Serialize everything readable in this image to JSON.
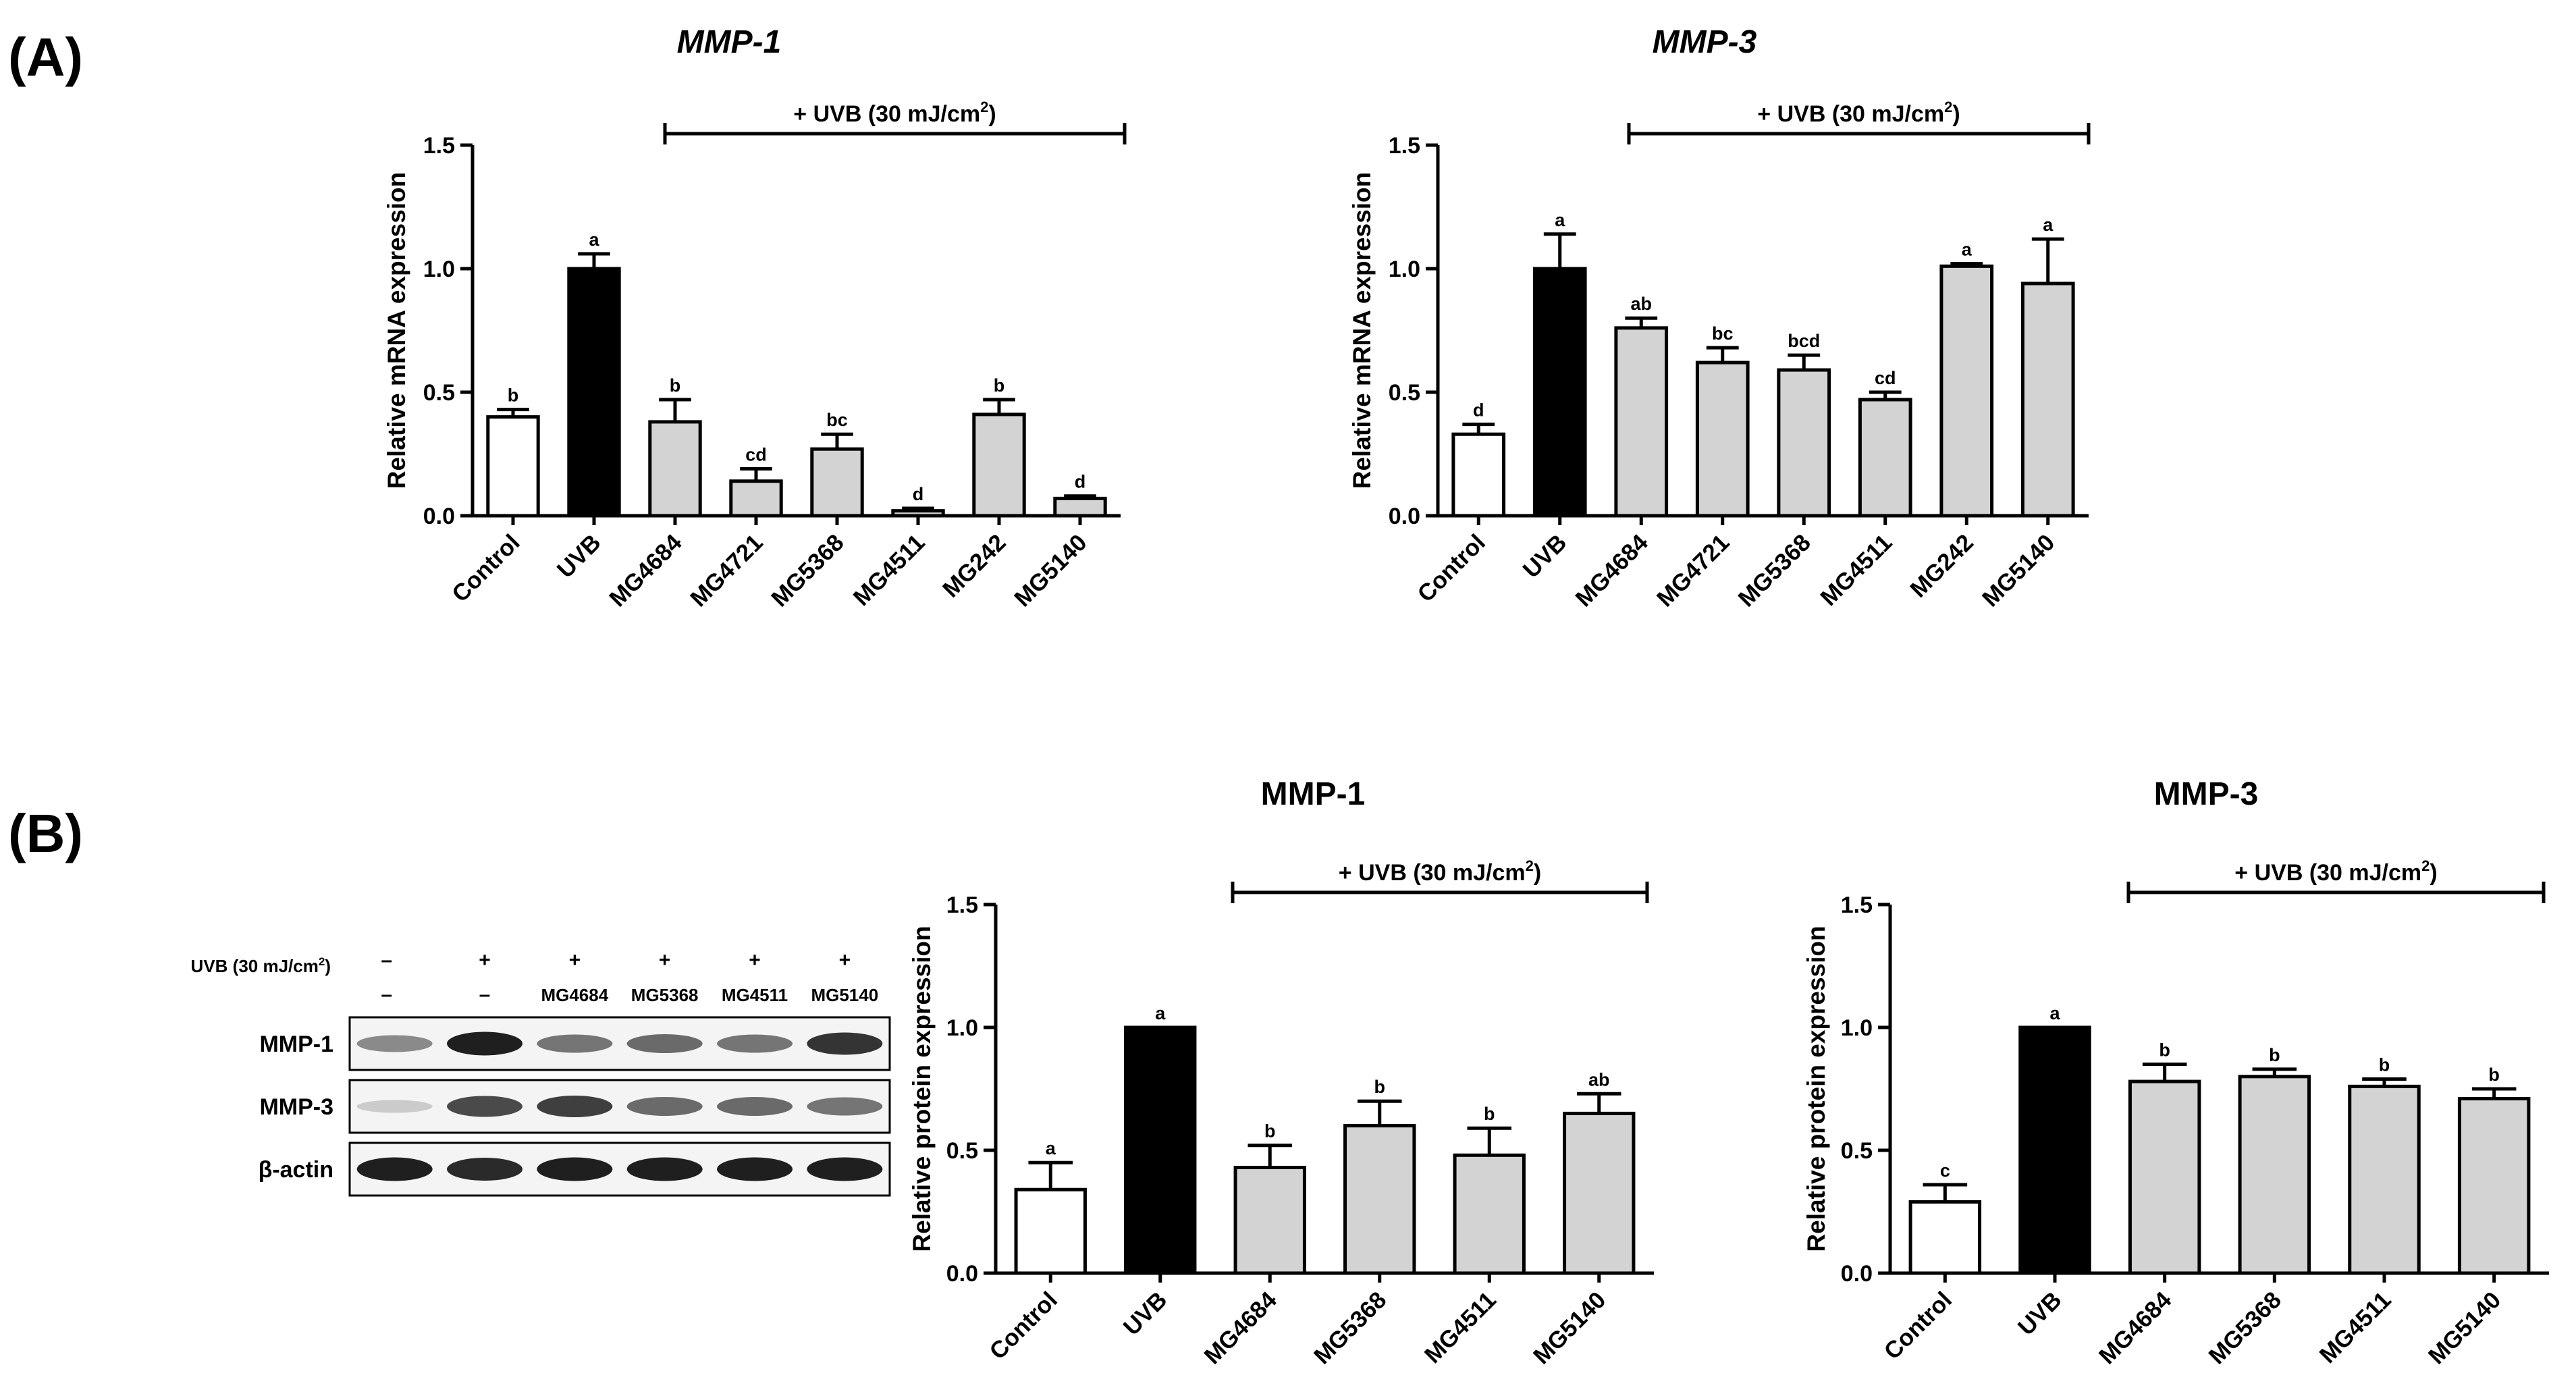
{
  "panels": {
    "a_label": "(A)",
    "b_label": "(B)"
  },
  "treatment": {
    "text": "+ UVB (30 mJ/cm",
    "sup": "2",
    "close": ")"
  },
  "colors": {
    "control": "#ffffff",
    "uvb": "#000000",
    "sample": "#d3d3d3",
    "stroke": "#000000"
  },
  "chart_data": [
    {
      "id": "A1",
      "type": "bar",
      "title": "MMP-1",
      "title_italic": true,
      "ylabel": "Relative mRNA expression",
      "ylim": [
        0,
        1.5
      ],
      "yticks": [
        0.0,
        0.5,
        1.0,
        1.5
      ],
      "ytick_labels": [
        "0.0",
        "0.5",
        "1.0",
        "1.5"
      ],
      "categories": [
        "Control",
        "UVB",
        "MG4684",
        "MG4721",
        "MG5368",
        "MG4511",
        "MG242",
        "MG5140"
      ],
      "values": [
        0.4,
        1.0,
        0.38,
        0.14,
        0.27,
        0.02,
        0.41,
        0.07
      ],
      "errors": [
        0.03,
        0.06,
        0.09,
        0.05,
        0.06,
        0.01,
        0.06,
        0.01
      ],
      "significance": [
        "b",
        "a",
        "b",
        "cd",
        "bc",
        "d",
        "b",
        "d"
      ],
      "fill": [
        "control",
        "uvb",
        "sample",
        "sample",
        "sample",
        "sample",
        "sample",
        "sample"
      ]
    },
    {
      "id": "A2",
      "type": "bar",
      "title": "MMP-3",
      "title_italic": true,
      "ylabel": "Relative mRNA expression",
      "ylim": [
        0,
        1.5
      ],
      "yticks": [
        0.0,
        0.5,
        1.0,
        1.5
      ],
      "ytick_labels": [
        "0.0",
        "0.5",
        "1.0",
        "1.5"
      ],
      "categories": [
        "Control",
        "UVB",
        "MG4684",
        "MG4721",
        "MG5368",
        "MG4511",
        "MG242",
        "MG5140"
      ],
      "values": [
        0.33,
        1.0,
        0.76,
        0.62,
        0.59,
        0.47,
        1.01,
        0.94
      ],
      "errors": [
        0.04,
        0.14,
        0.04,
        0.06,
        0.06,
        0.03,
        0.01,
        0.18
      ],
      "significance": [
        "d",
        "a",
        "ab",
        "bc",
        "bcd",
        "cd",
        "a",
        "a"
      ],
      "fill": [
        "control",
        "uvb",
        "sample",
        "sample",
        "sample",
        "sample",
        "sample",
        "sample"
      ]
    },
    {
      "id": "B1",
      "type": "bar",
      "title": "MMP-1",
      "title_italic": false,
      "ylabel": "Relative protein expression",
      "ylim": [
        0,
        1.5
      ],
      "yticks": [
        0.0,
        0.5,
        1.0,
        1.5
      ],
      "ytick_labels": [
        "0.0",
        "0.5",
        "1.0",
        "1.5"
      ],
      "categories": [
        "Control",
        "UVB",
        "MG4684",
        "MG5368",
        "MG4511",
        "MG5140"
      ],
      "values": [
        0.34,
        1.0,
        0.43,
        0.6,
        0.48,
        0.65
      ],
      "errors": [
        0.11,
        0.0,
        0.09,
        0.1,
        0.11,
        0.08
      ],
      "significance": [
        "a",
        "a",
        "b",
        "b",
        "b",
        "ab"
      ],
      "fill": [
        "control",
        "uvb",
        "sample",
        "sample",
        "sample",
        "sample"
      ]
    },
    {
      "id": "B2",
      "type": "bar",
      "title": "MMP-3",
      "title_italic": false,
      "ylabel": "Relative protein expression",
      "ylim": [
        0,
        1.5
      ],
      "yticks": [
        0.0,
        0.5,
        1.0,
        1.5
      ],
      "ytick_labels": [
        "0.0",
        "0.5",
        "1.0",
        "1.5"
      ],
      "categories": [
        "Control",
        "UVB",
        "MG4684",
        "MG5368",
        "MG4511",
        "MG5140"
      ],
      "values": [
        0.29,
        1.0,
        0.78,
        0.8,
        0.76,
        0.71
      ],
      "errors": [
        0.07,
        0.0,
        0.07,
        0.03,
        0.03,
        0.04
      ],
      "significance": [
        "c",
        "a",
        "b",
        "b",
        "b",
        "b"
      ],
      "fill": [
        "control",
        "uvb",
        "sample",
        "sample",
        "sample",
        "sample"
      ]
    }
  ],
  "western_blot": {
    "uvb_label": "UVB (30 mJ/cm",
    "uvb_sup": "2",
    "uvb_close": ")",
    "uvb_signs": [
      "–",
      "+",
      "+",
      "+",
      "+",
      "+"
    ],
    "sample_labels": [
      "–",
      "–",
      "MG4684",
      "MG5368",
      "MG4511",
      "MG5140"
    ],
    "rows": [
      {
        "label": "MMP-1",
        "intensities": [
          0.45,
          0.95,
          0.55,
          0.6,
          0.55,
          0.85
        ]
      },
      {
        "label": "MMP-3",
        "intensities": [
          0.15,
          0.75,
          0.8,
          0.6,
          0.6,
          0.55
        ]
      },
      {
        "label": "β-actin",
        "intensities": [
          0.95,
          0.9,
          0.95,
          0.95,
          0.95,
          0.95
        ]
      }
    ]
  }
}
